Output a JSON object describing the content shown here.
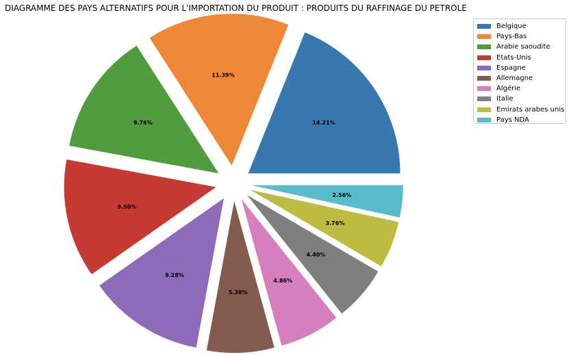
{
  "chart_data": {
    "type": "pie",
    "title": "DIAGRAMME DES PAYS ALTERNATIFS POUR L'IMPORTATION DU PRODUIT : PRODUITS DU RAFFINAGE DU PETROLE",
    "series": [
      {
        "label": "Belgique",
        "value": 14.21,
        "value_label": "14.21%",
        "color": "#3778b0"
      },
      {
        "label": "Pays-Bas",
        "value": 11.39,
        "value_label": "11.39%",
        "color": "#ef8836"
      },
      {
        "label": "Arabie saoudite",
        "value": 9.76,
        "value_label": "9.76%",
        "color": "#519d3e"
      },
      {
        "label": "Etats-Unis",
        "value": 9.5,
        "value_label": "9.50%",
        "color": "#c53a32"
      },
      {
        "label": "Espagne",
        "value": 9.28,
        "value_label": "9.28%",
        "color": "#8d6bb8"
      },
      {
        "label": "Allemagne",
        "value": 5.38,
        "value_label": "5.38%",
        "color": "#865b4f"
      },
      {
        "label": "Algérie",
        "value": 4.86,
        "value_label": "4.86%",
        "color": "#d57fbf"
      },
      {
        "label": "Italie",
        "value": 4.4,
        "value_label": "4.40%",
        "color": "#7f7f7f"
      },
      {
        "label": "Emirats arabes unis",
        "value": 3.76,
        "value_label": "3.76%",
        "color": "#bdbc41"
      },
      {
        "label": "Pays NDA",
        "value": 2.56,
        "value_label": "2.56%",
        "color": "#58bccc"
      }
    ],
    "legend_placement": "top-right",
    "start_angle_deg": 0,
    "direction": "counterclockwise",
    "exploded": true
  }
}
